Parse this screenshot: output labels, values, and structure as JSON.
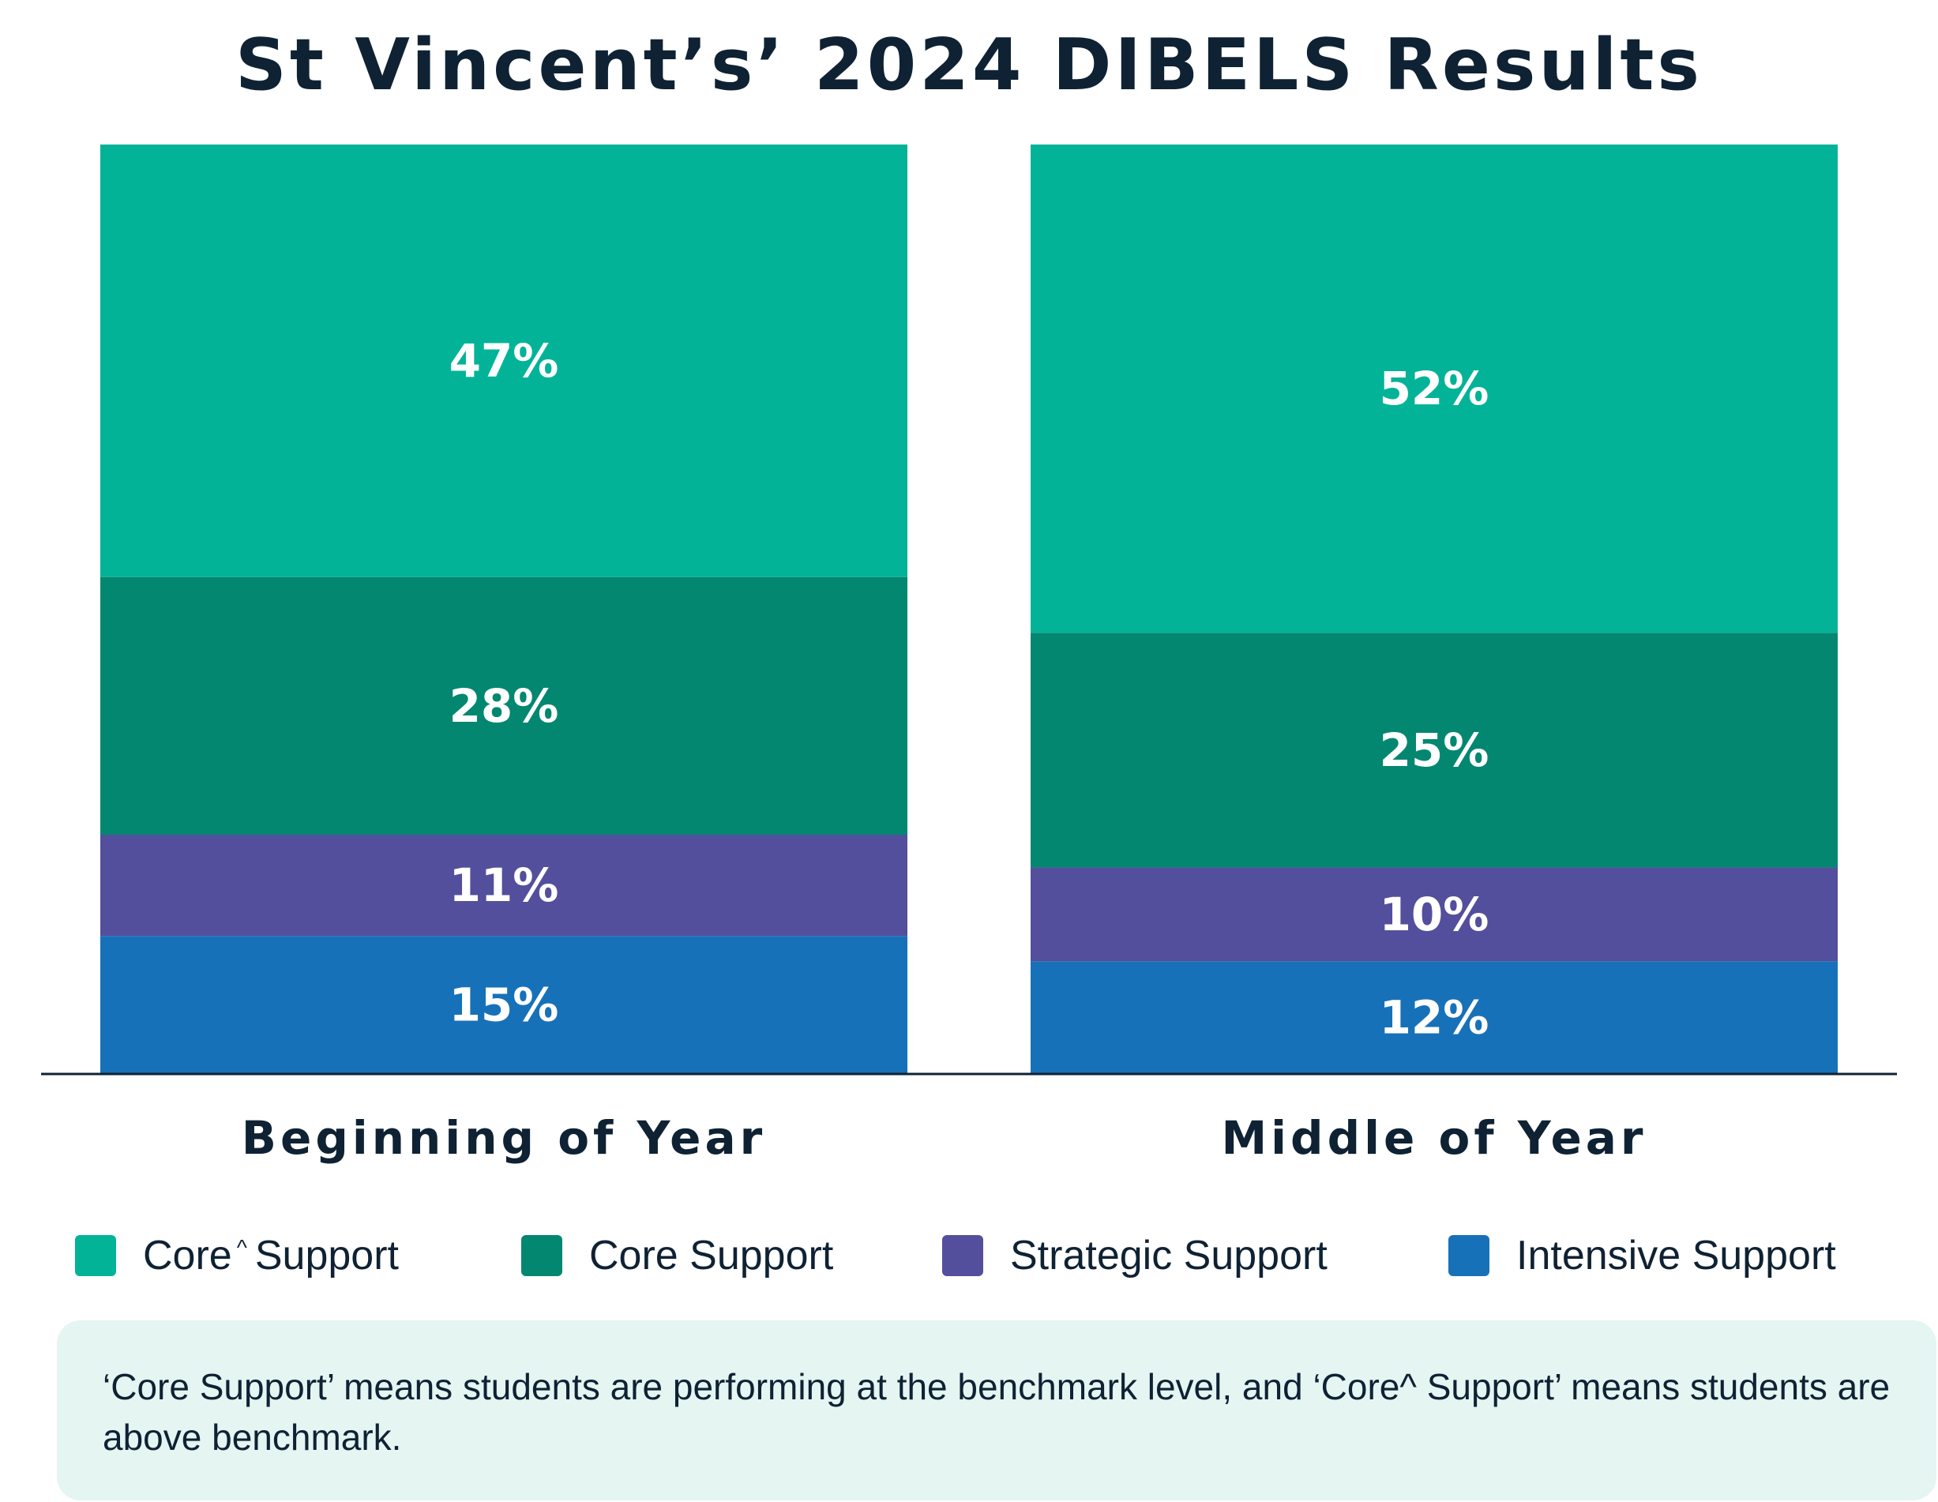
{
  "chart_data": {
    "type": "bar",
    "stacked": true,
    "title": "St Vincent’s’ 2024 DIBELS Results",
    "categories": [
      "Beginning of Year",
      "Middle of Year"
    ],
    "series": [
      {
        "name": "Intensive Support",
        "values": [
          15,
          12
        ],
        "labels": [
          "15%",
          "12%"
        ],
        "color": "#1771b8"
      },
      {
        "name": "Strategic Support",
        "values": [
          11,
          10
        ],
        "labels": [
          "11%",
          "10%"
        ],
        "color": "#534f9c"
      },
      {
        "name": "Core Support",
        "values": [
          28,
          25
        ],
        "labels": [
          "28%",
          "25%"
        ],
        "color": "#038770"
      },
      {
        "name": "Core^ Support",
        "values": [
          47,
          52
        ],
        "labels": [
          "47%",
          "52%"
        ],
        "color": "#03b398"
      }
    ],
    "ylim": [
      0,
      100
    ],
    "grid": false,
    "legend_position": "bottom"
  },
  "legend": [
    {
      "pre": "Core",
      "caret": "^",
      "post": "Support",
      "color": "#03b398"
    },
    {
      "pre": "Core Support",
      "caret": "",
      "post": "",
      "color": "#038770"
    },
    {
      "pre": "Strategic Support",
      "caret": "",
      "post": "",
      "color": "#534f9c"
    },
    {
      "pre": "Intensive Support",
      "caret": "",
      "post": "",
      "color": "#1771b8"
    }
  ],
  "note": "‘Core Support’ means students are performing at the benchmark level, and ‘Core^ Support’ means students are above benchmark."
}
